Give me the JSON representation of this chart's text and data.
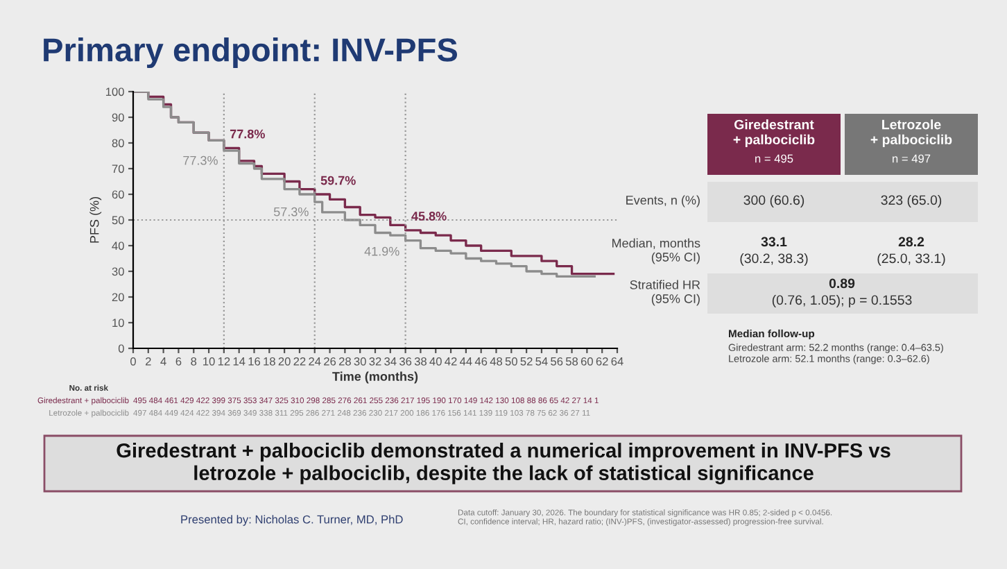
{
  "chart_data": {
    "type": "step",
    "title": "Primary endpoint: INV-PFS",
    "xlabel": "Time (months)",
    "ylabel": "PFS (%)",
    "xlim": [
      0,
      64
    ],
    "xticks": [
      0,
      2,
      4,
      6,
      8,
      10,
      12,
      14,
      16,
      18,
      20,
      22,
      24,
      26,
      28,
      30,
      32,
      34,
      36,
      38,
      40,
      42,
      44,
      46,
      48,
      50,
      52,
      54,
      56,
      58,
      60,
      62,
      64
    ],
    "ylim": [
      0,
      100
    ],
    "yticks": [
      0,
      10,
      20,
      30,
      40,
      50,
      60,
      70,
      80,
      90,
      100
    ],
    "grid": false,
    "series": [
      {
        "color": "#7a2a4c",
        "x": [
          0,
          2,
          4,
          5,
          6,
          8,
          10,
          12,
          14,
          16,
          17,
          20,
          22,
          24,
          26,
          28,
          30,
          32,
          34,
          36,
          38,
          40,
          42,
          44,
          46,
          48,
          50,
          52,
          54,
          56,
          58,
          60,
          63.5
        ],
        "values": [
          100,
          98,
          95,
          90,
          88,
          84,
          81,
          78,
          73,
          71,
          68,
          65,
          62,
          60,
          58,
          55,
          52,
          51,
          48,
          46,
          45,
          44,
          42,
          40,
          38,
          38,
          36,
          36,
          34,
          32,
          29,
          29,
          29
        ]
      },
      {
        "color": "#8c8c8c",
        "x": [
          0,
          2,
          4,
          5,
          6,
          8,
          10,
          12,
          14,
          16,
          17,
          20,
          22,
          24,
          25,
          28,
          30,
          32,
          34,
          36,
          38,
          40,
          42,
          44,
          46,
          48,
          50,
          52,
          54,
          56,
          58,
          60,
          61
        ],
        "values": [
          100,
          97,
          94,
          90,
          88,
          84,
          81,
          77,
          72,
          70,
          66,
          62,
          60,
          57,
          53,
          50,
          48,
          45,
          44,
          42,
          39,
          38,
          37,
          35,
          34,
          33,
          32,
          30,
          29,
          28,
          28,
          28,
          28
        ]
      }
    ],
    "ref_lines": [
      {
        "axis": "y",
        "value": 50,
        "line_style": "dotted",
        "color": "#999999"
      },
      {
        "axis": "x",
        "value": 12,
        "line_style": "dotted",
        "color": "#999999"
      },
      {
        "axis": "x",
        "value": 24,
        "line_style": "dotted",
        "color": "#999999"
      },
      {
        "axis": "x",
        "value": 36,
        "line_style": "dotted",
        "color": "#999999"
      }
    ],
    "annotations": [
      {
        "text": "77.8%",
        "x": 12,
        "y": 77.8
      },
      {
        "text": "77.3%",
        "x": 12,
        "y": 77.3
      },
      {
        "text": "59.7%",
        "x": 24,
        "y": 59.7
      },
      {
        "text": "57.3%",
        "x": 24,
        "y": 57.3
      },
      {
        "text": "45.8%",
        "x": 36,
        "y": 45.8
      },
      {
        "text": "41.9%",
        "x": 36,
        "y": 41.9
      },
      "No. at risk",
      "Giredestrant + palbociclib",
      "495 484 461 429 422 399 375 353 347 325 310 298 285 276 261 255 236 217 195 190 170 149 142 130 108 88 86 65 42 27 14 1",
      "Letrozole + palbociclib",
      "497 484 449 424 422 394 369 349 338 311 295 286 271 248 236 230 217 200 186 176 156 141 139 119 103 78 75 62 36 27 11",
      "Giredestrant\n+ palbociclib",
      "n = 495",
      "Letrozole\n+ palbociclib",
      "n = 497",
      "Events, n (%)",
      "300 (60.6)",
      "323 (65.0)",
      "Median, months\n(95% CI)",
      "33.1",
      "(30.2, 38.3)",
      "28.2",
      "(25.0, 33.1)",
      "Stratified HR\n(95% CI)",
      "0.89",
      "(0.76, 1.05); p = 0.1553",
      "Median follow-up",
      "Giredestrant arm: 52.2 months (range: 0.4–63.5)\nLetrozole arm: 52.1 months (range: 0.3–62.6)",
      "Giredestrant + palbociclib demonstrated a numerical improvement in INV-PFS vs\nletrozole + palbociclib, despite the lack of statistical significance",
      "Presented by: Nicholas C. Turner, MD, PhD",
      "Data cutoff: January 30, 2026. The boundary for statistical significance was HR 0.85; 2-sided p < 0.0456.\nCI, confidence interval; HR, hazard ratio; (INV-)PFS, (investigator-assessed) progression-free survival."
    ]
  }
}
